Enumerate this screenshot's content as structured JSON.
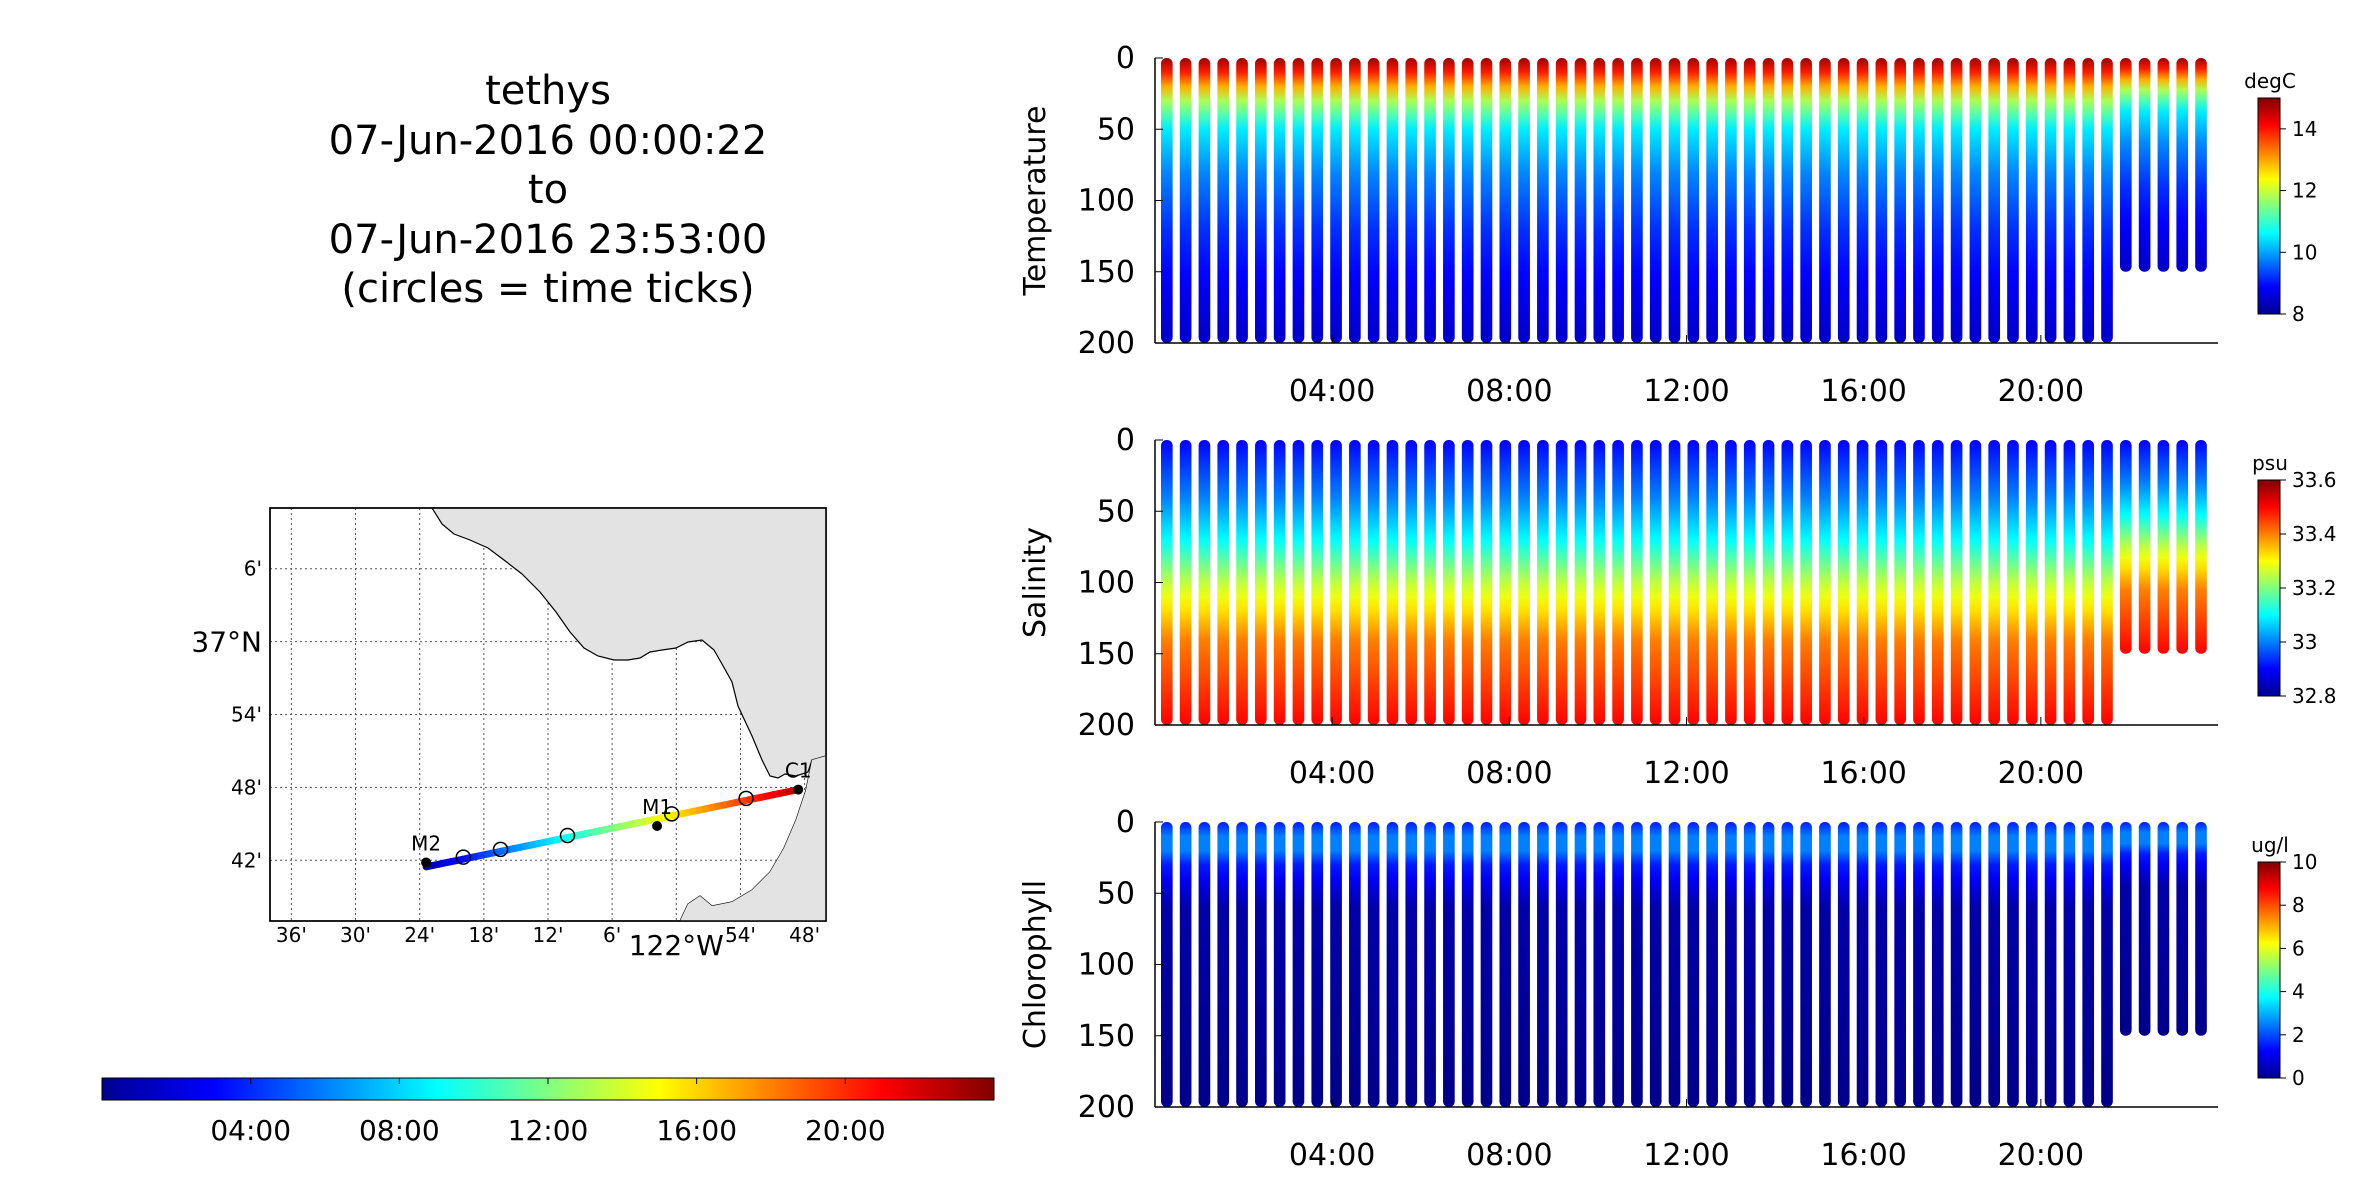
{
  "header": {
    "lines": [
      "tethys",
      "07-Jun-2016 00:00:22",
      "to",
      "07-Jun-2016 23:53:00",
      "(circles = time ticks)"
    ]
  },
  "map": {
    "lon_ticks": [
      "36'",
      "30'",
      "24'",
      "18'",
      "12'",
      "6'",
      "122°W",
      "54'",
      "48'"
    ],
    "lat_ticks": [
      "6'",
      "37°N",
      "54'",
      "48'",
      "42'"
    ],
    "stations": [
      {
        "name": "C1",
        "lon": -121.81,
        "lat": 36.797
      },
      {
        "name": "M1",
        "lon": -122.03,
        "lat": 36.747
      },
      {
        "name": "M2",
        "lon": -122.39,
        "lat": 36.697
      }
    ],
    "land_color": "#e3e3e3"
  },
  "time_colorbar": {
    "ticks": [
      "04:00",
      "08:00",
      "12:00",
      "16:00",
      "20:00"
    ]
  },
  "chart_data": [
    {
      "type": "scatter",
      "ylabel": "Temperature",
      "units": "degC",
      "y_ticks": [
        "0",
        "50",
        "100",
        "150",
        "200"
      ],
      "x_ticks": [
        "04:00",
        "08:00",
        "12:00",
        "16:00",
        "20:00"
      ],
      "ylim": [
        200,
        0
      ],
      "xlim_hours": [
        0,
        24
      ],
      "clim": [
        8,
        15
      ],
      "cbar_ticks": [
        "8",
        "10",
        "12",
        "14"
      ],
      "profile": [
        {
          "depth": 0,
          "value": 14.8
        },
        {
          "depth": 15,
          "value": 13.5
        },
        {
          "depth": 30,
          "value": 11.8
        },
        {
          "depth": 50,
          "value": 10.5
        },
        {
          "depth": 80,
          "value": 9.8
        },
        {
          "depth": 120,
          "value": 9.2
        },
        {
          "depth": 160,
          "value": 8.8
        },
        {
          "depth": 200,
          "value": 8.5
        }
      ]
    },
    {
      "type": "scatter",
      "ylabel": "Salinity",
      "units": "psu",
      "y_ticks": [
        "0",
        "50",
        "100",
        "150",
        "200"
      ],
      "x_ticks": [
        "04:00",
        "08:00",
        "12:00",
        "16:00",
        "20:00"
      ],
      "ylim": [
        200,
        0
      ],
      "xlim_hours": [
        0,
        24
      ],
      "clim": [
        32.8,
        33.6
      ],
      "cbar_ticks": [
        "32.8",
        "33",
        "33.2",
        "33.4",
        "33.6"
      ],
      "profile": [
        {
          "depth": 0,
          "value": 32.9
        },
        {
          "depth": 40,
          "value": 33.0
        },
        {
          "depth": 70,
          "value": 33.1
        },
        {
          "depth": 100,
          "value": 33.25
        },
        {
          "depth": 140,
          "value": 33.4
        },
        {
          "depth": 200,
          "value": 33.5
        }
      ]
    },
    {
      "type": "scatter",
      "ylabel": "Chlorophyll",
      "units": "ug/l",
      "y_ticks": [
        "0",
        "50",
        "100",
        "150",
        "200"
      ],
      "x_ticks": [
        "04:00",
        "08:00",
        "12:00",
        "16:00",
        "20:00"
      ],
      "ylim": [
        200,
        0
      ],
      "xlim_hours": [
        0,
        24
      ],
      "clim": [
        0,
        10
      ],
      "cbar_ticks": [
        "0",
        "2",
        "4",
        "6",
        "8",
        "10"
      ],
      "profile": [
        {
          "depth": 0,
          "value": 1.5
        },
        {
          "depth": 15,
          "value": 3.0
        },
        {
          "depth": 30,
          "value": 1.5
        },
        {
          "depth": 60,
          "value": 0.4
        },
        {
          "depth": 200,
          "value": 0.1
        }
      ]
    }
  ]
}
